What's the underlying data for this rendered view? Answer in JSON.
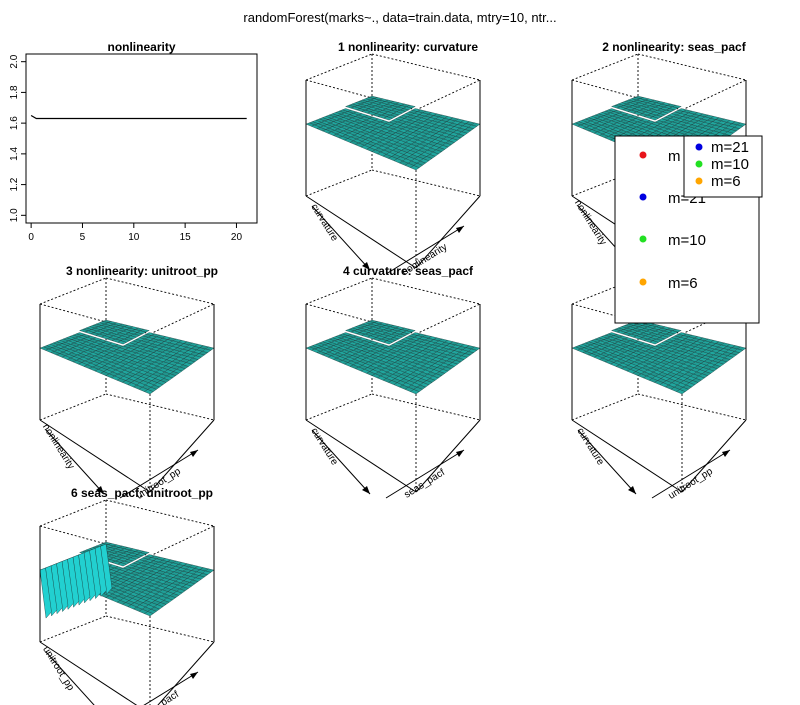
{
  "figure_title": "randomForest(marks~., data=train.data, mtry=10, ntr...",
  "chart_data": [
    {
      "type": "line",
      "title": "nonlinearity",
      "xlabel": "",
      "ylabel": "",
      "xlim": [
        -0.5,
        22
      ],
      "ylim": [
        0.95,
        2.05
      ],
      "xticks": [
        "0",
        "5",
        "10",
        "15",
        "20"
      ],
      "yticks": [
        "1.0",
        "1.2",
        "1.4",
        "1.6",
        "1.8",
        "2.0"
      ],
      "series": [
        {
          "x": [
            0,
            0.5,
            1,
            21
          ],
          "y": [
            1.65,
            1.63,
            1.63,
            1.63
          ]
        }
      ],
      "grid": false
    },
    {
      "type": "surface3d",
      "title": "1 nonlinearity: curvature",
      "xlabel": "curvature",
      "ylabel": "nonlinearity"
    },
    {
      "type": "surface3d",
      "title": "2 nonlinearity: seas_pacf",
      "xlabel": "nonlinearity",
      "ylabel": ""
    },
    {
      "type": "surface3d",
      "title": "3 nonlinearity: unitroot_pp",
      "xlabel": "nonlinearity",
      "ylabel": "unitroot_pp"
    },
    {
      "type": "surface3d",
      "title": "4 curvature: seas_pacf",
      "xlabel": "curvature",
      "ylabel": "seas_pacf"
    },
    {
      "type": "surface3d",
      "title": "5 cu",
      "xlabel": "curvature",
      "ylabel": "unitroot_pp"
    },
    {
      "type": "surface3d",
      "title": "6 seas_pacf: unitroot_pp",
      "xlabel": "unitroot_pp",
      "ylabel": "seas_pacf"
    }
  ],
  "legend_back": {
    "entries": [
      {
        "label": "m",
        "color": "#e8141b"
      },
      {
        "label": "m=21",
        "color": "#0000e0"
      },
      {
        "label": "m=10",
        "color": "#22e022"
      },
      {
        "label": "m=6",
        "color": "#ffa500"
      }
    ]
  },
  "legend_front": {
    "entries": [
      {
        "label": "m=21",
        "color": "#0000e0"
      },
      {
        "label": "m=10",
        "color": "#22e022"
      },
      {
        "label": "m=6",
        "color": "#ffa500"
      }
    ]
  },
  "colors": {
    "surface": "#20b2aa",
    "mesh": "#1a3a3a",
    "box": "#000000"
  }
}
